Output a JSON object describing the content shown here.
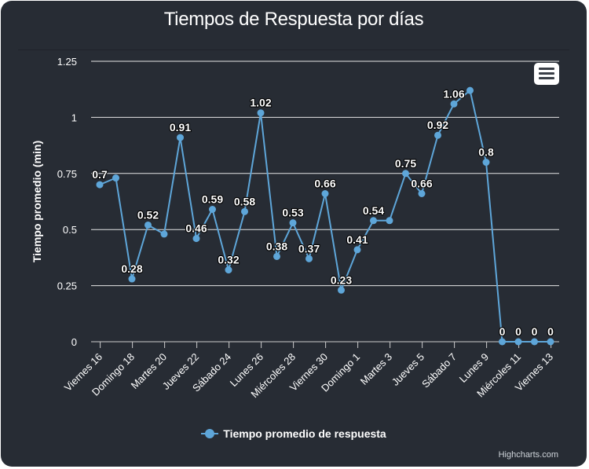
{
  "chart_data": {
    "type": "line",
    "title": "Tiempos de Respuesta por días",
    "ylabel": "Tiempo promedio (min)",
    "xlabel": "",
    "ylim": [
      0,
      1.25
    ],
    "yticks": [
      "0",
      "0.25",
      "0.5",
      "0.75",
      "1",
      "1.25"
    ],
    "xtick_labels": [
      "Viernes 16",
      "Domingo 18",
      "Martes 20",
      "Jueves 22",
      "Sábado 24",
      "Lunes 26",
      "Miércoles 28",
      "Viernes 30",
      "Domingo 1",
      "Martes 3",
      "Jueves 5",
      "Sábado 7",
      "Lunes 9",
      "Miércoles 11",
      "Viernes 13"
    ],
    "grid": true,
    "legend_position": "bottom",
    "series": [
      {
        "name": "Tiempo promedio de respuesta",
        "color": "#5ea6d9",
        "values": [
          0.7,
          0.73,
          0.28,
          0.52,
          0.48,
          0.91,
          0.46,
          0.59,
          0.32,
          0.58,
          1.02,
          0.38,
          0.53,
          0.37,
          0.66,
          0.23,
          0.41,
          0.54,
          0.54,
          0.75,
          0.66,
          0.92,
          1.06,
          1.12,
          0.8,
          0,
          0,
          0,
          0
        ],
        "labels": [
          "0.7",
          "",
          "0.28",
          "0.52",
          "",
          "0.91",
          "0.46",
          "0.59",
          "0.32",
          "0.58",
          "1.02",
          "0.38",
          "0.53",
          "0.37",
          "0.66",
          "0.23",
          "0.41",
          "0.54",
          "",
          "0.75",
          "0.66",
          "0.92",
          "1.06",
          "",
          "0.8",
          "0",
          "0",
          "0",
          "0"
        ]
      }
    ]
  },
  "credits": "Highcharts.com",
  "icons": {
    "menu": "hamburger-menu-icon"
  }
}
